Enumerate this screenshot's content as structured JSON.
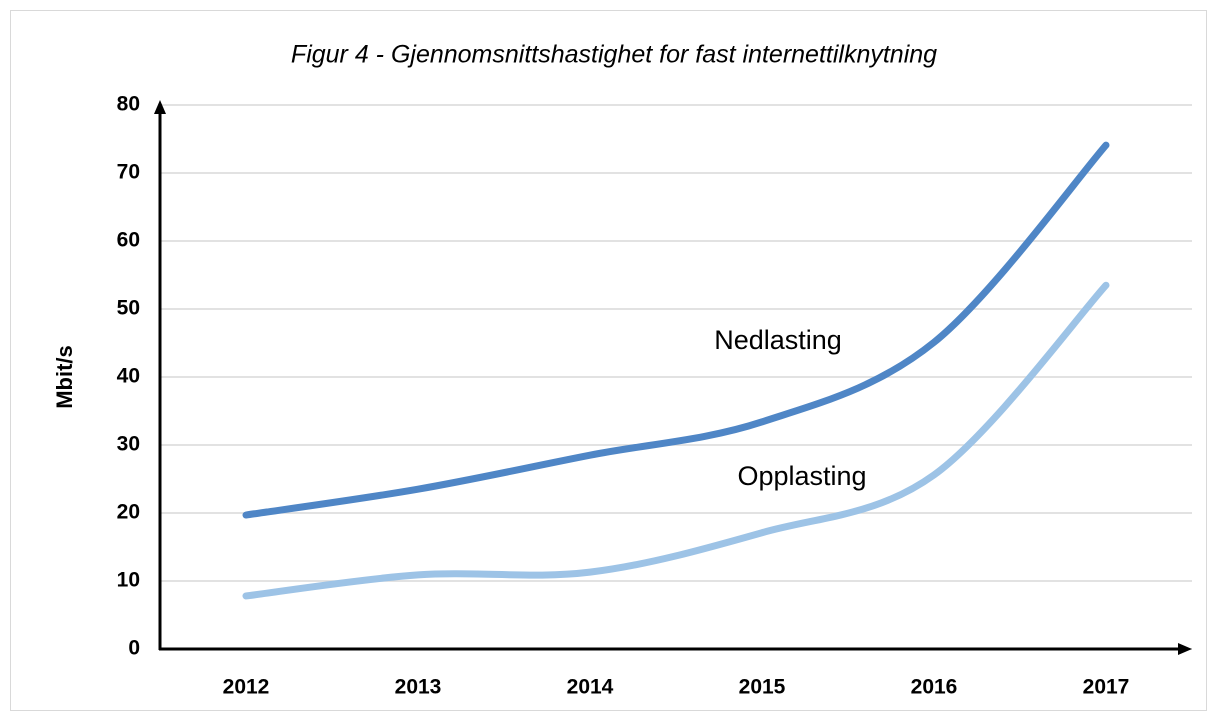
{
  "chart_data": {
    "type": "line",
    "title": "Figur 4 - Gjennomsnittshastighet for fast internettilknytning",
    "y_label": "Mbit/s",
    "categories": [
      "2012",
      "2013",
      "2014",
      "2015",
      "2016",
      "2017"
    ],
    "series": [
      {
        "name": "Nedlasting",
        "color": "#4f86c6",
        "values": [
          19.7,
          23.5,
          28.5,
          33.4,
          45.1,
          74.1
        ]
      },
      {
        "name": "Opplasting",
        "color": "#9dc3e6",
        "values": [
          7.8,
          10.9,
          11.3,
          17.1,
          25.6,
          53.5
        ]
      }
    ],
    "ylim": [
      0,
      80
    ],
    "yticks": [
      0,
      10,
      20,
      30,
      40,
      50,
      60,
      70,
      80
    ],
    "grid": true,
    "smooth": true
  }
}
